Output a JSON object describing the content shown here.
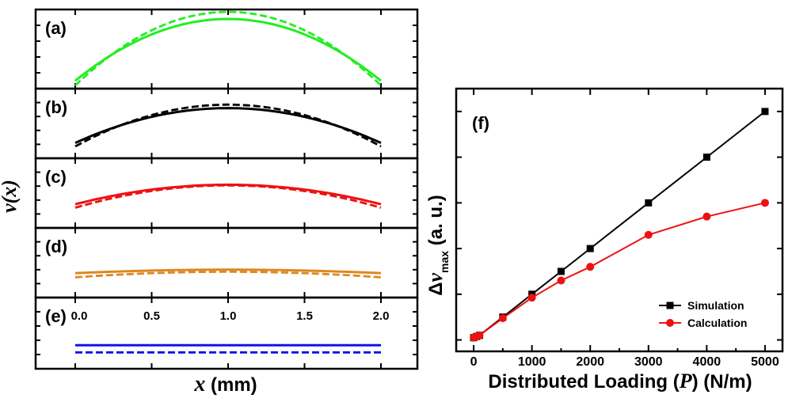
{
  "chart_data": [
    {
      "type": "line",
      "panels": [
        {
          "label": "(a)",
          "color": "#22ee22",
          "solid_peak": 0.88,
          "solid_end": 0.1,
          "dashed_peak": 0.97,
          "dashed_end": 0.04
        },
        {
          "label": "(b)",
          "color": "#000000",
          "solid_peak": 0.72,
          "solid_end": 0.22,
          "dashed_peak": 0.77,
          "dashed_end": 0.17
        },
        {
          "label": "(c)",
          "color": "#ee1111",
          "solid_peak": 0.62,
          "solid_end": 0.34,
          "dashed_peak": 0.61,
          "dashed_end": 0.29
        },
        {
          "label": "(d)",
          "color": "#dd8822",
          "solid_peak": 0.4,
          "solid_end": 0.35,
          "dashed_peak": 0.37,
          "dashed_end": 0.29
        },
        {
          "label": "(e)",
          "color": "#1111ee",
          "solid_peak": 0.33,
          "solid_end": 0.33,
          "dashed_peak": 0.23,
          "dashed_end": 0.23
        }
      ],
      "x_ticks": [
        "0.0",
        "0.5",
        "1.0",
        "1.5",
        "2.0"
      ],
      "xlim": [
        0.0,
        2.0
      ],
      "xlabel_var": "x",
      "xlabel_unit": " (mm)",
      "ylabel_var": "v(x)"
    },
    {
      "type": "line",
      "label": "(f)",
      "x": [
        0,
        50,
        100,
        500,
        1000,
        1500,
        2000,
        3000,
        4000,
        5000
      ],
      "series": [
        {
          "name": "Simulation",
          "color": "#000000",
          "marker": "square",
          "values": [
            0.2,
            0.3,
            0.4,
            2.0,
            4.0,
            6.0,
            8.0,
            12.0,
            16.0,
            20.0
          ]
        },
        {
          "name": "Calculation",
          "color": "#ee1111",
          "marker": "circle",
          "values": [
            0.2,
            0.3,
            0.4,
            1.9,
            3.7,
            5.2,
            6.4,
            9.2,
            10.8,
            12.0
          ]
        }
      ],
      "x_ticks": [
        "0",
        "1000",
        "2000",
        "3000",
        "4000",
        "5000"
      ],
      "xlim": [
        -300,
        5300
      ],
      "ylim": [
        -1,
        22
      ],
      "y_minor_ticks": [
        0,
        4,
        8,
        12,
        16,
        20
      ],
      "xlabel_main": "Distributed Loading (",
      "xlabel_var": "P",
      "xlabel_tail": ") (N/m)",
      "ylabel_delta": "Δ",
      "ylabel_var": "v",
      "ylabel_sub": "max",
      "ylabel_unit": " (a. u.)",
      "legend": "bottom-right"
    }
  ]
}
